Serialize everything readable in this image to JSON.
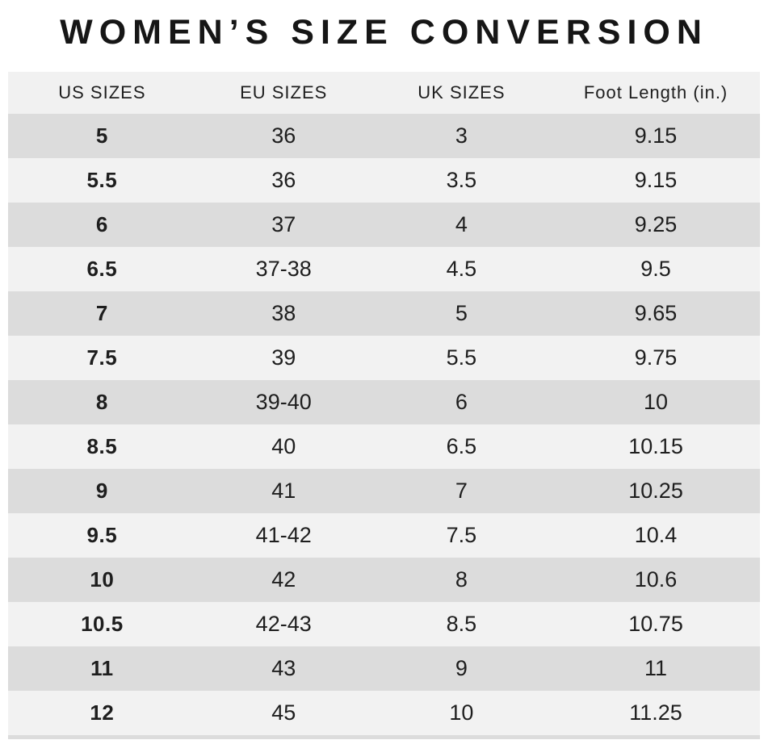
{
  "title": "WOMEN’S SIZE CONVERSION",
  "chart_data": {
    "type": "table",
    "title": "WOMEN’S SIZE CONVERSION",
    "columns": [
      "US SIZES",
      "EU SIZES",
      "UK SIZES",
      "Foot Length (in.)"
    ],
    "rows": [
      [
        "5",
        "36",
        "3",
        "9.15"
      ],
      [
        "5.5",
        "36",
        "3.5",
        "9.15"
      ],
      [
        "6",
        "37",
        "4",
        "9.25"
      ],
      [
        "6.5",
        "37-38",
        "4.5",
        "9.5"
      ],
      [
        "7",
        "38",
        "5",
        "9.65"
      ],
      [
        "7.5",
        "39",
        "5.5",
        "9.75"
      ],
      [
        "8",
        "39-40",
        "6",
        "10"
      ],
      [
        "8.5",
        "40",
        "6.5",
        "10.15"
      ],
      [
        "9",
        "41",
        "7",
        "10.25"
      ],
      [
        "9.5",
        "41-42",
        "7.5",
        "10.4"
      ],
      [
        "10",
        "42",
        "8",
        "10.6"
      ],
      [
        "10.5",
        "42-43",
        "8.5",
        "10.75"
      ],
      [
        "11",
        "43",
        "9",
        "11"
      ],
      [
        "12",
        "45",
        "10",
        "11.25"
      ]
    ],
    "layout": {
      "row_striping": "first-data-row-dark",
      "bold_column": "US SIZES",
      "column_width_percents": [
        25,
        23.3,
        24,
        27.7
      ]
    }
  },
  "colors": {
    "row_dark": "#dcdcdc",
    "row_light": "#f2f2f2",
    "header_bg": "#f1f1f1",
    "text": "#1e1e1e",
    "title": "#161616",
    "page_bg": "#ffffff"
  }
}
